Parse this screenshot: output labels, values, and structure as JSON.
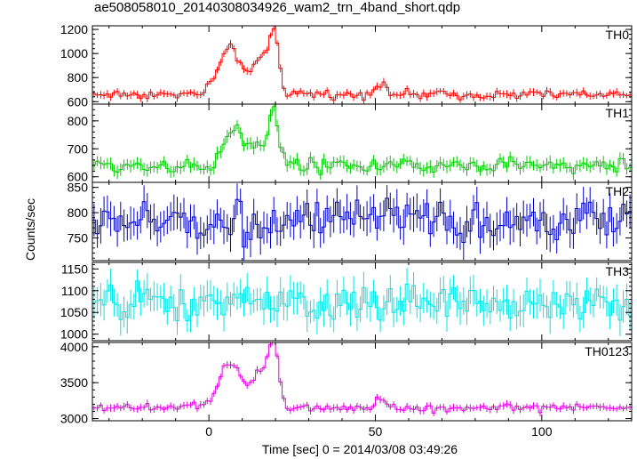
{
  "figure": {
    "title": "ae508058010_20140308034926_wam2_trn_4band_short.qdp",
    "ylabel": "Counts/sec",
    "xlabel": "Time [sec] 0 = 2014/03/08 03:49:26"
  },
  "chart_data": {
    "type": "line",
    "title": "ae508058010_20140308034926_wam2_trn_4band_short.qdp",
    "xlabel": "Time [sec] 0 = 2014/03/08 03:49:26",
    "ylabel": "Counts/sec",
    "xlim": [
      -35,
      127
    ],
    "x_ticks": [
      0,
      50,
      100
    ],
    "bin_width_sec": 1,
    "grid": false,
    "panels": [
      {
        "name": "TH0",
        "color": "#ff0000",
        "ylim": [
          580,
          1230
        ],
        "y_ticks": [
          600,
          800,
          1000,
          1200
        ],
        "baseline": 660,
        "noise": 28,
        "features": [
          {
            "center": 6.5,
            "width": 3.5,
            "amplitude": 380
          },
          {
            "center": 15.5,
            "width": 2.0,
            "amplitude": 280
          },
          {
            "center": 19.5,
            "width": 1.5,
            "amplitude": 500
          },
          {
            "center": 51.5,
            "width": 1.5,
            "amplitude": 110
          }
        ]
      },
      {
        "name": "TH1",
        "color": "#00cc00",
        "ylim": [
          580,
          860
        ],
        "y_ticks": [
          600,
          700,
          800
        ],
        "baseline": 640,
        "noise": 20,
        "features": [
          {
            "center": 7.0,
            "width": 2.5,
            "amplitude": 120
          },
          {
            "center": 14.0,
            "width": 3.5,
            "amplitude": 70
          },
          {
            "center": 19.5,
            "width": 1.5,
            "amplitude": 180
          }
        ]
      },
      {
        "name": "TH2",
        "color": "#0000cc",
        "ylim": [
          705,
          860
        ],
        "y_ticks": [
          750,
          800,
          850
        ],
        "baseline": 782,
        "noise": 30,
        "features": []
      },
      {
        "name": "TH3",
        "color": "#00e5e5",
        "ylim": [
          985,
          1165
        ],
        "y_ticks": [
          1000,
          1050,
          1100,
          1150
        ],
        "baseline": 1070,
        "noise": 32,
        "features": []
      },
      {
        "name": "TH0123",
        "color": "#e000e0",
        "ylim": [
          2970,
          4060
        ],
        "y_ticks": [
          3000,
          3500,
          4000
        ],
        "baseline": 3150,
        "noise": 45,
        "features": [
          {
            "center": 6.5,
            "width": 3.5,
            "amplitude": 620
          },
          {
            "center": 15.5,
            "width": 2.0,
            "amplitude": 500
          },
          {
            "center": 19.5,
            "width": 1.5,
            "amplitude": 900
          },
          {
            "center": 51.5,
            "width": 1.5,
            "amplitude": 120
          }
        ]
      }
    ]
  }
}
